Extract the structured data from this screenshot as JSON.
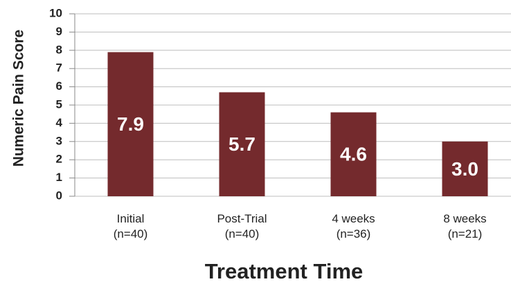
{
  "chart_data": {
    "type": "bar",
    "x_label": "Treatment Time",
    "y_label": "Numeric Pain Score",
    "categories": [
      "Initial\n(n=40)",
      "Post-Trial\n(n=40)",
      "4 weeks\n(n=36)",
      "8 weeks\n(n=21)"
    ],
    "values": [
      7.9,
      5.7,
      4.6,
      3.0
    ],
    "value_labels": [
      "7.9",
      "5.7",
      "4.6",
      "3.0"
    ],
    "color": "#742a2d",
    "ylim": [
      0,
      10
    ],
    "yticks": [
      0,
      1,
      2,
      3,
      4,
      5,
      6,
      7,
      8,
      9,
      10
    ],
    "grid": true
  }
}
